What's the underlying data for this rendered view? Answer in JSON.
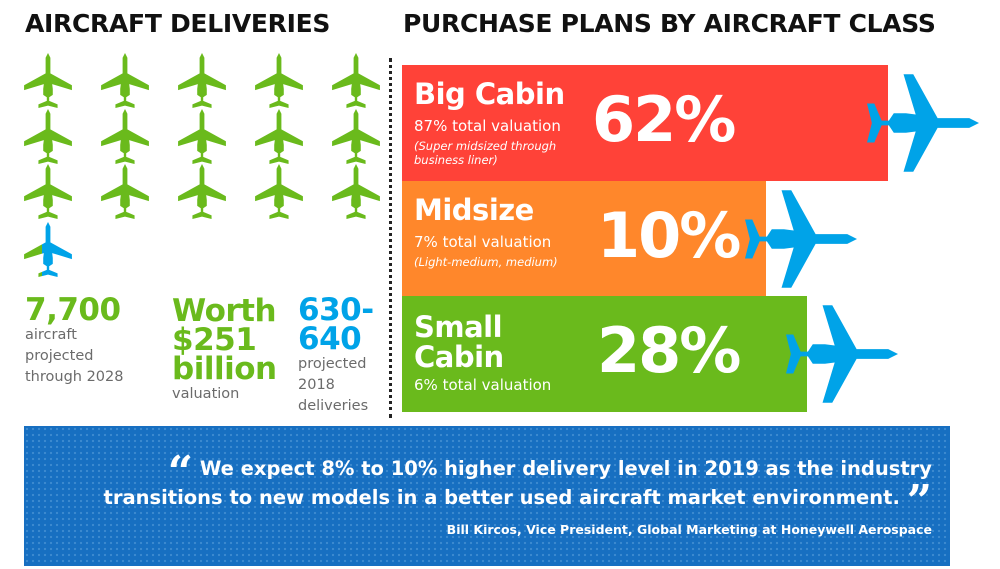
{
  "left": {
    "title": "AIRCRAFT DELIVERIES",
    "icons": {
      "count": 16,
      "icon": "airplane-icon",
      "color": "#6aba1c",
      "highlight_color": "#00a3e8"
    },
    "stats": [
      {
        "big": "7,700",
        "sub": "aircraft projected through 2028",
        "color": "#6aba1c"
      },
      {
        "big": "Worth $251 billion",
        "sub": "valuation",
        "color": "#6aba1c"
      },
      {
        "big": "630-640",
        "sub": "projected 2018 deliveries",
        "color": "#00a3e8"
      }
    ]
  },
  "right": {
    "title": "PURCHASE PLANS BY AIRCRAFT CLASS"
  },
  "chart_data": {
    "type": "bar",
    "orientation": "horizontal",
    "categories": [
      "Big Cabin",
      "Midsize",
      "Small Cabin"
    ],
    "values": [
      62,
      10,
      28
    ],
    "value_labels": [
      "62%",
      "10%",
      "28%"
    ],
    "valuation_labels": [
      "87% total valuation",
      "7% total valuation",
      "6% total valuation"
    ],
    "notes": [
      "(Super midsized through business liner)",
      "(Light-medium, medium)",
      ""
    ],
    "colors": [
      "#ff4238",
      "#ff872b",
      "#6aba1c"
    ],
    "icon": "airplane-icon",
    "icon_color": "#00a3e8"
  },
  "quote": {
    "text": "We expect 8% to 10% higher delivery level in 2019 as the industry transitions to new models in a better used aircraft market environment.",
    "open_mark": "“",
    "close_mark": "”",
    "attribution": "Bill Kircos, Vice President, Global Marketing at Honeywell Aerospace",
    "background": "#176fc1"
  }
}
